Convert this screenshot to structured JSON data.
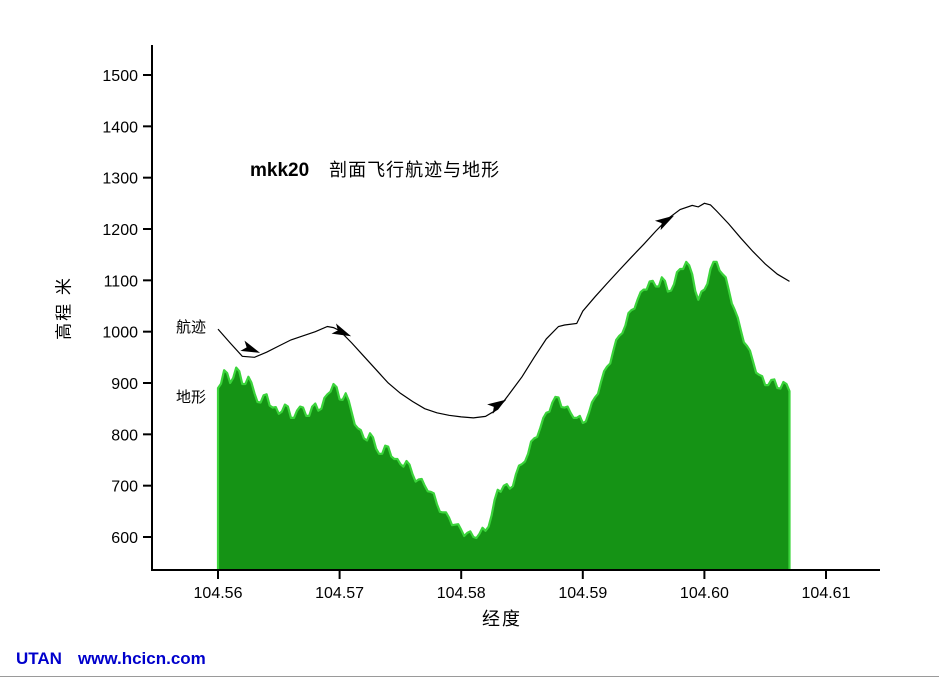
{
  "chart": {
    "title_code": "mkk20",
    "title_text": "剖面飞行航迹与地形",
    "ylabel": "高程 米",
    "xlabel": "经度",
    "series_labels": {
      "trajectory": "航迹",
      "terrain": "地形"
    }
  },
  "footer": {
    "brand": "UTAN",
    "url": "www.hcicn.com",
    "color": "#0000cc"
  },
  "chart_data": {
    "type": "area",
    "title": "mkk20 剖面飞行航迹与地形",
    "xlabel": "经度",
    "ylabel": "高程 米",
    "xlim": [
      104.555,
      104.612
    ],
    "ylim": [
      560,
      1560
    ],
    "grid": false,
    "legend_position": "inline-labels",
    "x_ticks": {
      "values": [
        104.56,
        104.57,
        104.58,
        104.59,
        104.6,
        104.61
      ],
      "labels": [
        "104.56",
        "104.57",
        "104.58",
        "104.59",
        "104.60",
        "104.61"
      ]
    },
    "y_ticks": [
      600,
      700,
      800,
      900,
      1000,
      1100,
      1200,
      1300,
      1400,
      1500
    ],
    "series": [
      {
        "name": "地形",
        "type": "area",
        "color": "#159315",
        "edge_color": "#3bd43b",
        "points": [
          [
            104.56,
            890
          ],
          [
            104.5605,
            925
          ],
          [
            104.561,
            900
          ],
          [
            104.5615,
            930
          ],
          [
            104.562,
            898
          ],
          [
            104.5625,
            912
          ],
          [
            104.563,
            880
          ],
          [
            104.5635,
            862
          ],
          [
            104.564,
            878
          ],
          [
            104.5645,
            852
          ],
          [
            104.565,
            840
          ],
          [
            104.5655,
            858
          ],
          [
            104.566,
            832
          ],
          [
            104.5665,
            846
          ],
          [
            104.567,
            852
          ],
          [
            104.5675,
            836
          ],
          [
            104.568,
            860
          ],
          [
            104.5685,
            850
          ],
          [
            104.569,
            878
          ],
          [
            104.5695,
            898
          ],
          [
            104.57,
            868
          ],
          [
            104.5705,
            880
          ],
          [
            104.571,
            842
          ],
          [
            104.5715,
            812
          ],
          [
            104.572,
            792
          ],
          [
            104.5725,
            802
          ],
          [
            104.573,
            772
          ],
          [
            104.5735,
            762
          ],
          [
            104.574,
            776
          ],
          [
            104.5745,
            752
          ],
          [
            104.575,
            742
          ],
          [
            104.5755,
            748
          ],
          [
            104.576,
            722
          ],
          [
            104.5765,
            712
          ],
          [
            104.577,
            700
          ],
          [
            104.5775,
            688
          ],
          [
            104.578,
            664
          ],
          [
            104.5785,
            648
          ],
          [
            104.579,
            638
          ],
          [
            104.5795,
            624
          ],
          [
            104.58,
            614
          ],
          [
            104.5805,
            608
          ],
          [
            104.581,
            600
          ],
          [
            104.5815,
            606
          ],
          [
            104.582,
            612
          ],
          [
            104.5825,
            642
          ],
          [
            104.583,
            692
          ],
          [
            104.5835,
            700
          ],
          [
            104.584,
            694
          ],
          [
            104.5845,
            722
          ],
          [
            104.585,
            742
          ],
          [
            104.5855,
            762
          ],
          [
            104.586,
            792
          ],
          [
            104.5865,
            812
          ],
          [
            104.587,
            842
          ],
          [
            104.5875,
            862
          ],
          [
            104.588,
            872
          ],
          [
            104.5885,
            852
          ],
          [
            104.589,
            842
          ],
          [
            104.5895,
            832
          ],
          [
            104.59,
            822
          ],
          [
            104.5905,
            842
          ],
          [
            104.591,
            872
          ],
          [
            104.5915,
            902
          ],
          [
            104.592,
            932
          ],
          [
            104.5925,
            962
          ],
          [
            104.593,
            992
          ],
          [
            104.5935,
            1012
          ],
          [
            104.594,
            1042
          ],
          [
            104.5945,
            1062
          ],
          [
            104.595,
            1082
          ],
          [
            104.5955,
            1098
          ],
          [
            104.596,
            1088
          ],
          [
            104.5965,
            1106
          ],
          [
            104.597,
            1078
          ],
          [
            104.5975,
            1092
          ],
          [
            104.598,
            1122
          ],
          [
            104.5985,
            1136
          ],
          [
            104.599,
            1112
          ],
          [
            104.5995,
            1062
          ],
          [
            104.6,
            1082
          ],
          [
            104.6005,
            1122
          ],
          [
            104.601,
            1136
          ],
          [
            104.6015,
            1112
          ],
          [
            104.602,
            1082
          ],
          [
            104.6025,
            1042
          ],
          [
            104.603,
            1002
          ],
          [
            104.6035,
            972
          ],
          [
            104.604,
            942
          ],
          [
            104.6045,
            916
          ],
          [
            104.605,
            896
          ],
          [
            104.6055,
            906
          ],
          [
            104.606,
            890
          ],
          [
            104.6065,
            902
          ],
          [
            104.607,
            884
          ]
        ]
      },
      {
        "name": "航迹",
        "type": "line",
        "color": "#000000",
        "points": [
          [
            104.56,
            1005
          ],
          [
            104.561,
            978
          ],
          [
            104.562,
            952
          ],
          [
            104.563,
            950
          ],
          [
            104.564,
            960
          ],
          [
            104.565,
            972
          ],
          [
            104.566,
            984
          ],
          [
            104.567,
            992
          ],
          [
            104.568,
            1000
          ],
          [
            104.569,
            1010
          ],
          [
            104.5695,
            1008
          ],
          [
            104.57,
            1002
          ],
          [
            104.571,
            978
          ],
          [
            104.572,
            952
          ],
          [
            104.573,
            926
          ],
          [
            104.574,
            900
          ],
          [
            104.575,
            880
          ],
          [
            104.576,
            864
          ],
          [
            104.577,
            850
          ],
          [
            104.578,
            842
          ],
          [
            104.579,
            837
          ],
          [
            104.58,
            834
          ],
          [
            104.581,
            832
          ],
          [
            104.582,
            835
          ],
          [
            104.583,
            849
          ],
          [
            104.584,
            880
          ],
          [
            104.585,
            912
          ],
          [
            104.586,
            950
          ],
          [
            104.587,
            986
          ],
          [
            104.588,
            1010
          ],
          [
            104.5885,
            1013
          ],
          [
            104.5895,
            1016
          ],
          [
            104.59,
            1040
          ],
          [
            104.591,
            1068
          ],
          [
            104.592,
            1094
          ],
          [
            104.593,
            1120
          ],
          [
            104.594,
            1145
          ],
          [
            104.595,
            1170
          ],
          [
            104.596,
            1196
          ],
          [
            104.597,
            1220
          ],
          [
            104.598,
            1238
          ],
          [
            104.599,
            1246
          ],
          [
            104.5995,
            1243
          ],
          [
            104.6,
            1250
          ],
          [
            104.6005,
            1247
          ],
          [
            104.601,
            1235
          ],
          [
            104.602,
            1210
          ],
          [
            104.603,
            1182
          ],
          [
            104.604,
            1156
          ],
          [
            104.605,
            1132
          ],
          [
            104.606,
            1112
          ],
          [
            104.607,
            1098
          ]
        ]
      }
    ],
    "arrows": [
      {
        "x": 104.5627,
        "y": 966,
        "angle_deg": 22
      },
      {
        "x": 104.5702,
        "y": 999,
        "angle_deg": 24
      },
      {
        "x": 104.583,
        "y": 858,
        "angle_deg": -30
      },
      {
        "x": 104.5968,
        "y": 1216,
        "angle_deg": -31
      }
    ]
  }
}
